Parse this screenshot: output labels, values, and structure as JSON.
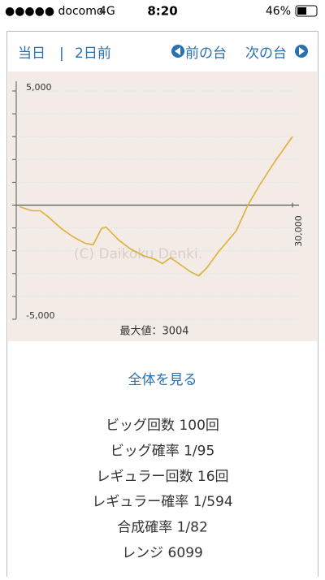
{
  "status_bar": {
    "carrier": "●●●●● docomo",
    "network": "4G",
    "time": "8:20",
    "battery": "46%"
  },
  "nav": {
    "today": "当日",
    "two_days_ago": "2日前",
    "prev": "前の台",
    "next": "次の台"
  },
  "chart_data": {
    "type": "line",
    "watermark": "(C) Daikoku Denki.",
    "annotation": "最大値：3004",
    "x": [
      0,
      1400,
      2300,
      3200,
      4600,
      5900,
      7200,
      8100,
      9000,
      9500,
      10900,
      12200,
      13600,
      14900,
      15700,
      16600,
      17900,
      18800,
      19700,
      20600,
      21900,
      23800,
      25100,
      26400,
      28200,
      30000
    ],
    "series": [
      {
        "color": "#e0ae38",
        "values": [
          -70,
          -250,
          -250,
          -530,
          -1030,
          -1390,
          -1670,
          -1740,
          -1030,
          -960,
          -1530,
          -1920,
          -2210,
          -2380,
          -2560,
          -2310,
          -2670,
          -2920,
          -3100,
          -2740,
          -2030,
          -1140,
          0,
          890,
          1990,
          3004
        ]
      }
    ],
    "xlim": [
      0,
      30000
    ],
    "ylim": [
      -5000,
      5000
    ],
    "xticks": [
      {
        "value": 30000,
        "label": "30,000"
      }
    ],
    "yticks": [
      {
        "value": 5000,
        "label": "5,000"
      },
      {
        "value": -5000,
        "label": "-5,000"
      }
    ],
    "minor_yticks": [
      4000,
      3000,
      2000,
      1000,
      0,
      -1000,
      -2000,
      -3000,
      -4000
    ],
    "grid": true
  },
  "link": "全体を見る",
  "stats": [
    "ビッグ回数 100回",
    "ビッグ確率 1/95",
    "レギュラー回数 16回",
    "レギュラー確率 1/594",
    "合成確率 1/82",
    "レンジ 6099"
  ]
}
